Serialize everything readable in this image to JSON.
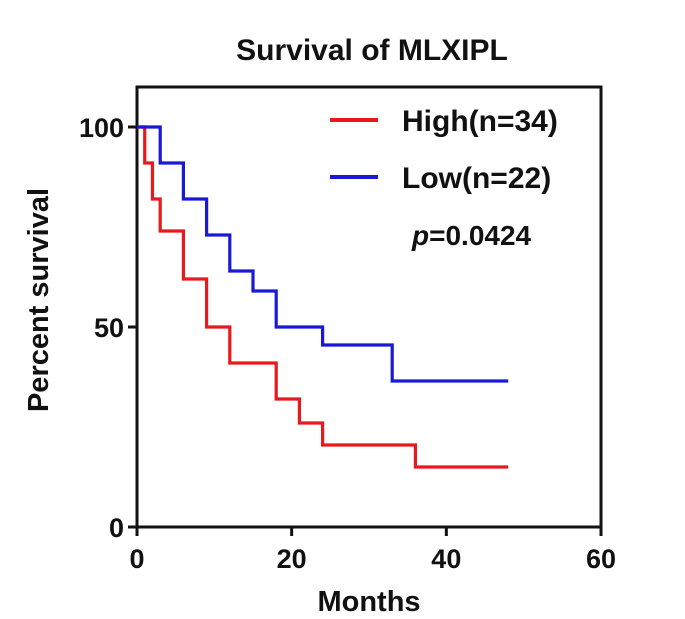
{
  "chart_data": {
    "type": "line",
    "subtype": "kaplan-meier step",
    "title": "Survival of MLXIPL",
    "xlabel": "Months",
    "ylabel": "Percent survival",
    "xlim": [
      0,
      60
    ],
    "ylim": [
      0,
      100
    ],
    "xticks": [
      0,
      20,
      40,
      60
    ],
    "yticks": [
      0,
      50,
      100
    ],
    "grid": false,
    "legend_position": "top-right",
    "pvalue": {
      "prefix": "p",
      "text": "=0.0424"
    },
    "series": [
      {
        "name": "High(n=34)",
        "color": "#e8191c",
        "points": [
          [
            0,
            100
          ],
          [
            1,
            91
          ],
          [
            2,
            82
          ],
          [
            3,
            74
          ],
          [
            6,
            62
          ],
          [
            9,
            50
          ],
          [
            12,
            41
          ],
          [
            18,
            32
          ],
          [
            21,
            26
          ],
          [
            24,
            20.5
          ],
          [
            36,
            15
          ],
          [
            48,
            15
          ]
        ]
      },
      {
        "name": "Low(n=22)",
        "color": "#1a1ad6",
        "points": [
          [
            0,
            100
          ],
          [
            3,
            91
          ],
          [
            6,
            82
          ],
          [
            9,
            73
          ],
          [
            12,
            64
          ],
          [
            15,
            59
          ],
          [
            18,
            50
          ],
          [
            24,
            45.5
          ],
          [
            33,
            36.5
          ],
          [
            48,
            36.5
          ]
        ]
      }
    ]
  }
}
